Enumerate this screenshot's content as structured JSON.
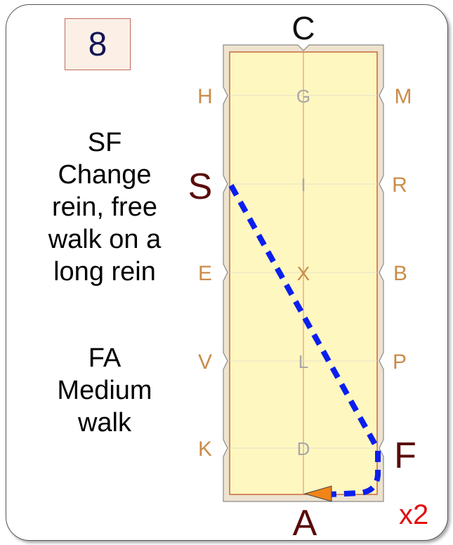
{
  "step_number": "8",
  "instructions": [
    {
      "lines": [
        "SF",
        "Change",
        "rein, free",
        "walk on a",
        "long rein"
      ]
    },
    {
      "lines": [
        "FA",
        "Medium",
        "walk"
      ]
    }
  ],
  "repeat_label": "x2",
  "markers": {
    "top": "C",
    "bottom": "A",
    "left": [
      "H",
      "S",
      "E",
      "V",
      "K"
    ],
    "right": [
      "M",
      "R",
      "B",
      "P",
      "F"
    ],
    "centre": [
      "G",
      "I",
      "X",
      "L",
      "D"
    ]
  },
  "highlighted_markers": [
    "S",
    "F",
    "A"
  ],
  "colors": {
    "arena_fill": "#fff7c0",
    "arena_border": "#c9683c",
    "surround": "#ede3cf",
    "letter_default": "#c98c4a",
    "letter_highlight": "#5a0b0b",
    "centre_letter": "#a8a8a8",
    "path": "#0a1fee",
    "arrow": "#f08418"
  }
}
